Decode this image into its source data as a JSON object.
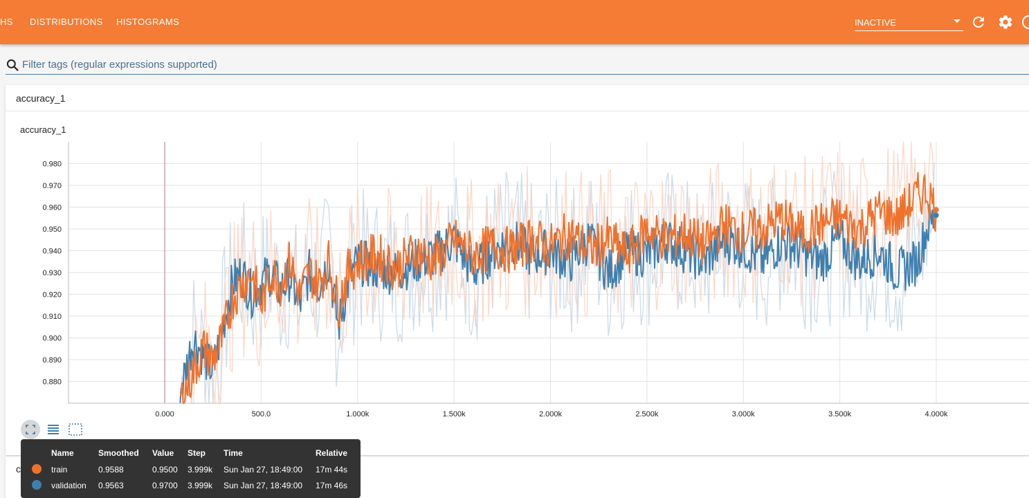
{
  "topbar": {
    "tabs": [
      "HS",
      "DISTRIBUTIONS",
      "HISTOGRAMS"
    ],
    "status": "INACTIVE",
    "bg_color": "#f57c34"
  },
  "filter": {
    "placeholder": "Filter tags (regular expressions supported)"
  },
  "section": {
    "title": "accuracy_1",
    "next_section_initial": "c"
  },
  "chart_data": {
    "type": "line",
    "title": "accuracy_1",
    "xlabel": "",
    "ylabel": "",
    "xlim": [
      -500,
      4500
    ],
    "ylim": [
      0.87,
      0.99
    ],
    "x_ticks": [
      "0.000",
      "500.0",
      "1.000k",
      "1.500k",
      "2.000k",
      "2.500k",
      "3.000k",
      "3.500k",
      "4.000k"
    ],
    "x_tick_values": [
      0,
      500,
      1000,
      1500,
      2000,
      2500,
      3000,
      3500,
      4000
    ],
    "y_ticks": [
      "0.880",
      "0.890",
      "0.900",
      "0.910",
      "0.920",
      "0.930",
      "0.940",
      "0.950",
      "0.960",
      "0.970",
      "0.980"
    ],
    "y_tick_values": [
      0.88,
      0.89,
      0.9,
      0.91,
      0.92,
      0.93,
      0.94,
      0.95,
      0.96,
      0.97,
      0.98
    ],
    "series": [
      {
        "name": "validation",
        "color": "#3f7fae",
        "raw_color": "#c9d7e3",
        "x": [
          80,
          150,
          200,
          250,
          300,
          350,
          400,
          450,
          500,
          550,
          600,
          650,
          700,
          750,
          800,
          850,
          900,
          950,
          1000,
          1100,
          1200,
          1300,
          1400,
          1500,
          1600,
          1700,
          1800,
          1900,
          2000,
          2100,
          2200,
          2300,
          2400,
          2500,
          2600,
          2700,
          2800,
          2900,
          3000,
          3100,
          3200,
          3300,
          3400,
          3500,
          3600,
          3700,
          3800,
          3900,
          3950,
          3999
        ],
        "values": [
          0.875,
          0.9,
          0.892,
          0.885,
          0.905,
          0.925,
          0.93,
          0.92,
          0.925,
          0.93,
          0.922,
          0.928,
          0.915,
          0.93,
          0.925,
          0.935,
          0.905,
          0.925,
          0.935,
          0.932,
          0.93,
          0.935,
          0.938,
          0.945,
          0.93,
          0.94,
          0.945,
          0.938,
          0.94,
          0.935,
          0.945,
          0.93,
          0.94,
          0.938,
          0.945,
          0.94,
          0.935,
          0.945,
          0.942,
          0.935,
          0.945,
          0.94,
          0.935,
          0.945,
          0.935,
          0.94,
          0.93,
          0.935,
          0.95,
          0.9563
        ]
      },
      {
        "name": "train",
        "color": "#f0712c",
        "raw_color": "#fcd3c2",
        "x": [
          80,
          150,
          200,
          250,
          300,
          350,
          400,
          450,
          500,
          550,
          600,
          650,
          700,
          750,
          800,
          850,
          900,
          950,
          1000,
          1100,
          1200,
          1300,
          1400,
          1500,
          1600,
          1700,
          1800,
          1900,
          2000,
          2100,
          2200,
          2300,
          2400,
          2500,
          2600,
          2700,
          2800,
          2900,
          3000,
          3100,
          3200,
          3300,
          3400,
          3500,
          3600,
          3700,
          3800,
          3900,
          3950,
          3999
        ],
        "values": [
          0.87,
          0.885,
          0.895,
          0.89,
          0.9,
          0.918,
          0.925,
          0.93,
          0.915,
          0.93,
          0.925,
          0.935,
          0.92,
          0.93,
          0.925,
          0.935,
          0.915,
          0.93,
          0.935,
          0.938,
          0.932,
          0.94,
          0.935,
          0.945,
          0.938,
          0.942,
          0.94,
          0.945,
          0.942,
          0.948,
          0.94,
          0.945,
          0.938,
          0.95,
          0.945,
          0.948,
          0.942,
          0.952,
          0.948,
          0.95,
          0.955,
          0.948,
          0.952,
          0.955,
          0.95,
          0.958,
          0.955,
          0.965,
          0.968,
          0.9588
        ]
      }
    ]
  },
  "tooltip": {
    "headers": [
      "Name",
      "Smoothed",
      "Value",
      "Step",
      "Time",
      "Relative"
    ],
    "rows": [
      {
        "name": "train",
        "smoothed": "0.9588",
        "value": "0.9500",
        "step": "3.999k",
        "time": "Sun Jan 27, 18:49:00",
        "relative": "17m 44s",
        "color": "#f0712c"
      },
      {
        "name": "validation",
        "smoothed": "0.9563",
        "value": "0.9700",
        "step": "3.999k",
        "time": "Sun Jan 27, 18:49:00",
        "relative": "17m 46s",
        "color": "#3f7fae"
      }
    ]
  }
}
